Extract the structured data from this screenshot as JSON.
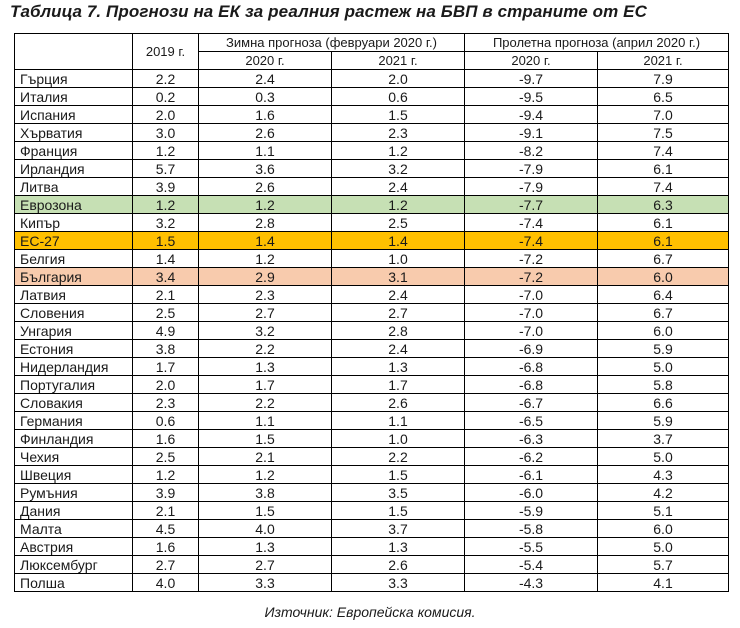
{
  "title": "Таблица 7. Прогнози на ЕК за реалния растеж на БВП в страните от ЕС",
  "header": {
    "year_2019": "2019 г.",
    "winter_group": "Зимна прогноза (февруари 2020 г.)",
    "spring_group": "Пролетна прогноза (април 2020 г.)",
    "sub_2020": "2020 г.",
    "sub_2021": "2021 г."
  },
  "highlight_colors": {
    "eurozone": "#c6e0b4",
    "eu27": "#ffc000",
    "bulgaria": "#f8cbad"
  },
  "rows": [
    {
      "country": "Гърция",
      "v2019": "2.2",
      "w2020": "2.4",
      "w2021": "2.0",
      "s2020": "-9.7",
      "s2021": "7.9",
      "hl": ""
    },
    {
      "country": "Италия",
      "v2019": "0.2",
      "w2020": "0.3",
      "w2021": "0.6",
      "s2020": "-9.5",
      "s2021": "6.5",
      "hl": ""
    },
    {
      "country": "Испания",
      "v2019": "2.0",
      "w2020": "1.6",
      "w2021": "1.5",
      "s2020": "-9.4",
      "s2021": "7.0",
      "hl": ""
    },
    {
      "country": "Хърватия",
      "v2019": "3.0",
      "w2020": "2.6",
      "w2021": "2.3",
      "s2020": "-9.1",
      "s2021": "7.5",
      "hl": ""
    },
    {
      "country": "Франция",
      "v2019": "1.2",
      "w2020": "1.1",
      "w2021": "1.2",
      "s2020": "-8.2",
      "s2021": "7.4",
      "hl": ""
    },
    {
      "country": "Ирландия",
      "v2019": "5.7",
      "w2020": "3.6",
      "w2021": "3.2",
      "s2020": "-7.9",
      "s2021": "6.1",
      "hl": ""
    },
    {
      "country": "Литва",
      "v2019": "3.9",
      "w2020": "2.6",
      "w2021": "2.4",
      "s2020": "-7.9",
      "s2021": "7.4",
      "hl": ""
    },
    {
      "country": "Еврозона",
      "v2019": "1.2",
      "w2020": "1.2",
      "w2021": "1.2",
      "s2020": "-7.7",
      "s2021": "6.3",
      "hl": "eurozone"
    },
    {
      "country": "Кипър",
      "v2019": "3.2",
      "w2020": "2.8",
      "w2021": "2.5",
      "s2020": "-7.4",
      "s2021": "6.1",
      "hl": ""
    },
    {
      "country": "ЕС-27",
      "v2019": "1.5",
      "w2020": "1.4",
      "w2021": "1.4",
      "s2020": "-7.4",
      "s2021": "6.1",
      "hl": "eu27"
    },
    {
      "country": "Белгия",
      "v2019": "1.4",
      "w2020": "1.2",
      "w2021": "1.0",
      "s2020": "-7.2",
      "s2021": "6.7",
      "hl": ""
    },
    {
      "country": "България",
      "v2019": "3.4",
      "w2020": "2.9",
      "w2021": "3.1",
      "s2020": "-7.2",
      "s2021": "6.0",
      "hl": "bulgaria"
    },
    {
      "country": "Латвия",
      "v2019": "2.1",
      "w2020": "2.3",
      "w2021": "2.4",
      "s2020": "-7.0",
      "s2021": "6.4",
      "hl": ""
    },
    {
      "country": "Словения",
      "v2019": "2.5",
      "w2020": "2.7",
      "w2021": "2.7",
      "s2020": "-7.0",
      "s2021": "6.7",
      "hl": ""
    },
    {
      "country": "Унгария",
      "v2019": "4.9",
      "w2020": "3.2",
      "w2021": "2.8",
      "s2020": "-7.0",
      "s2021": "6.0",
      "hl": ""
    },
    {
      "country": "Естония",
      "v2019": "3.8",
      "w2020": "2.2",
      "w2021": "2.4",
      "s2020": "-6.9",
      "s2021": "5.9",
      "hl": ""
    },
    {
      "country": "Нидерландия",
      "v2019": "1.7",
      "w2020": "1.3",
      "w2021": "1.3",
      "s2020": "-6.8",
      "s2021": "5.0",
      "hl": ""
    },
    {
      "country": "Португалия",
      "v2019": "2.0",
      "w2020": "1.7",
      "w2021": "1.7",
      "s2020": "-6.8",
      "s2021": "5.8",
      "hl": ""
    },
    {
      "country": "Словакия",
      "v2019": "2.3",
      "w2020": "2.2",
      "w2021": "2.6",
      "s2020": "-6.7",
      "s2021": "6.6",
      "hl": ""
    },
    {
      "country": "Германия",
      "v2019": "0.6",
      "w2020": "1.1",
      "w2021": "1.1",
      "s2020": "-6.5",
      "s2021": "5.9",
      "hl": ""
    },
    {
      "country": "Финландия",
      "v2019": "1.6",
      "w2020": "1.5",
      "w2021": "1.0",
      "s2020": "-6.3",
      "s2021": "3.7",
      "hl": ""
    },
    {
      "country": "Чехия",
      "v2019": "2.5",
      "w2020": "2.1",
      "w2021": "2.2",
      "s2020": "-6.2",
      "s2021": "5.0",
      "hl": ""
    },
    {
      "country": "Швеция",
      "v2019": "1.2",
      "w2020": "1.2",
      "w2021": "1.5",
      "s2020": "-6.1",
      "s2021": "4.3",
      "hl": ""
    },
    {
      "country": "Румъния",
      "v2019": "3.9",
      "w2020": "3.8",
      "w2021": "3.5",
      "s2020": "-6.0",
      "s2021": "4.2",
      "hl": ""
    },
    {
      "country": "Дания",
      "v2019": "2.1",
      "w2020": "1.5",
      "w2021": "1.5",
      "s2020": "-5.9",
      "s2021": "5.1",
      "hl": ""
    },
    {
      "country": "Малта",
      "v2019": "4.5",
      "w2020": "4.0",
      "w2021": "3.7",
      "s2020": "-5.8",
      "s2021": "6.0",
      "hl": ""
    },
    {
      "country": "Австрия",
      "v2019": "1.6",
      "w2020": "1.3",
      "w2021": "1.3",
      "s2020": "-5.5",
      "s2021": "5.0",
      "hl": ""
    },
    {
      "country": "Люксембург",
      "v2019": "2.7",
      "w2020": "2.7",
      "w2021": "2.6",
      "s2020": "-5.4",
      "s2021": "5.7",
      "hl": ""
    },
    {
      "country": "Полша",
      "v2019": "4.0",
      "w2020": "3.3",
      "w2021": "3.3",
      "s2020": "-4.3",
      "s2021": "4.1",
      "hl": ""
    }
  ],
  "source": "Източник: Европейска комисия."
}
